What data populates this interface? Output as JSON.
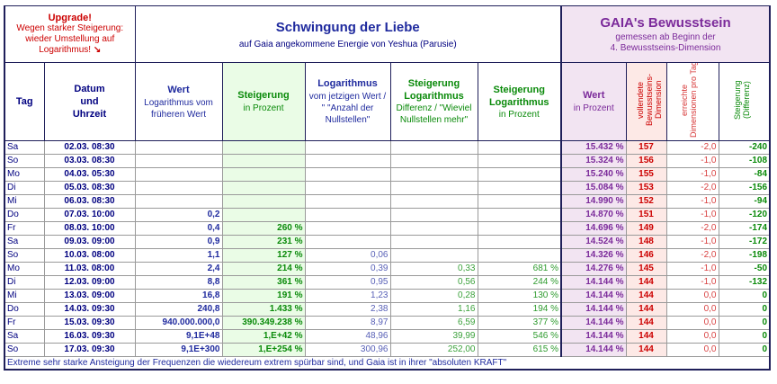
{
  "top": {
    "upgrade_title": "Upgrade!",
    "upgrade_line1": "Wegen starker Steigerung:",
    "upgrade_line2": "wieder Umstellung auf",
    "upgrade_line3": "Logarithmus!",
    "upgrade_arrow": "↘",
    "title": "Schwingung der Liebe",
    "subtitle": "auf Gaia angekommene Energie von Yeshua (Parusie)",
    "gaia_title": "GAIA's Bewusstsein",
    "gaia_sub1": "gemessen ab Beginn der",
    "gaia_sub2": "4. Bewusstseins-Dimension"
  },
  "headers": {
    "tag": "Tag",
    "datum_1": "Datum",
    "datum_2": "und",
    "datum_3": "Uhrzeit",
    "wert_title": "Wert",
    "wert_sub": "Logarithmus vom früheren Wert",
    "steig_title": "Steigerung",
    "steig_sub": "in Prozent",
    "log_title": "Logarithmus",
    "log_sub": "vom jetzigen Wert / \" \"Anzahl der Nullstellen\"",
    "steiglog_title_1": "Steigerung",
    "steiglog_title_2": "Logarithmus",
    "steiglog_sub": "Differenz / \"Wieviel Nullstellen mehr\"",
    "steiglogp_title_1": "Steigerung",
    "steiglogp_title_2": "Logarithmus",
    "steiglogp_sub": "in Prozent",
    "gwert_title": "Wert",
    "gwert_sub": "in Prozent",
    "vollendete": "vollendete Bewusstseins-Dimension",
    "erreichte": "erreichte Dimensionen pro Tag",
    "gsteig": "Steigerung (Differenz)"
  },
  "rows": [
    {
      "tag": "Sa",
      "datum": "02.03.  08:30",
      "wert": "",
      "steig": "",
      "log": "",
      "steiglog": "",
      "steiglogp": "",
      "gwert": "15.432  %",
      "voll": "157",
      "err": "-2,0",
      "diff": "-240"
    },
    {
      "tag": "So",
      "datum": "03.03.  08:30",
      "wert": "",
      "steig": "",
      "log": "",
      "steiglog": "",
      "steiglogp": "",
      "gwert": "15.324  %",
      "voll": "156",
      "err": "-1,0",
      "diff": "-108"
    },
    {
      "tag": "Mo",
      "datum": "04.03.  05:30",
      "wert": "",
      "steig": "",
      "log": "",
      "steiglog": "",
      "steiglogp": "",
      "gwert": "15.240  %",
      "voll": "155",
      "err": "-1,0",
      "diff": "-84"
    },
    {
      "tag": "Di",
      "datum": "05.03.  08:30",
      "wert": "",
      "steig": "",
      "log": "",
      "steiglog": "",
      "steiglogp": "",
      "gwert": "15.084  %",
      "voll": "153",
      "err": "-2,0",
      "diff": "-156"
    },
    {
      "tag": "Mi",
      "datum": "06.03.  08:30",
      "wert": "",
      "steig": "",
      "log": "",
      "steiglog": "",
      "steiglogp": "",
      "gwert": "14.990  %",
      "voll": "152",
      "err": "-1,0",
      "diff": "-94"
    },
    {
      "tag": "Do",
      "datum": "07.03.  10:00",
      "wert": "0,2",
      "steig": "",
      "log": "",
      "steiglog": "",
      "steiglogp": "",
      "gwert": "14.870  %",
      "voll": "151",
      "err": "-1,0",
      "diff": "-120"
    },
    {
      "tag": "Fr",
      "datum": "08.03.  10:00",
      "wert": "0,4",
      "steig": "260  %",
      "log": "",
      "steiglog": "",
      "steiglogp": "",
      "gwert": "14.696  %",
      "voll": "149",
      "err": "-2,0",
      "diff": "-174"
    },
    {
      "tag": "Sa",
      "datum": "09.03.  09:00",
      "wert": "0,9",
      "steig": "231  %",
      "log": "",
      "steiglog": "",
      "steiglogp": "",
      "gwert": "14.524  %",
      "voll": "148",
      "err": "-1,0",
      "diff": "-172"
    },
    {
      "tag": "So",
      "datum": "10.03.  08:00",
      "wert": "1,1",
      "steig": "127  %",
      "log": "0,06",
      "steiglog": "",
      "steiglogp": "",
      "gwert": "14.326  %",
      "voll": "146",
      "err": "-2,0",
      "diff": "-198"
    },
    {
      "tag": "Mo",
      "datum": "11.03.  08:00",
      "wert": "2,4",
      "steig": "214  %",
      "log": "0,39",
      "steiglog": "0,33",
      "steiglogp": "681  %",
      "gwert": "14.276  %",
      "voll": "145",
      "err": "-1,0",
      "diff": "-50"
    },
    {
      "tag": "Di",
      "datum": "12.03.  09:00",
      "wert": "8,8",
      "steig": "361  %",
      "log": "0,95",
      "steiglog": "0,56",
      "steiglogp": "244  %",
      "gwert": "14.144  %",
      "voll": "144",
      "err": "-1,0",
      "diff": "-132"
    },
    {
      "tag": "Mi",
      "datum": "13.03.  09:00",
      "wert": "16,8",
      "steig": "191  %",
      "log": "1,23",
      "steiglog": "0,28",
      "steiglogp": "130  %",
      "gwert": "14.144  %",
      "voll": "144",
      "err": "0,0",
      "diff": "0"
    },
    {
      "tag": "Do",
      "datum": "14.03.  09:30",
      "wert": "240,8",
      "steig": "1.433  %",
      "log": "2,38",
      "steiglog": "1,16",
      "steiglogp": "194  %",
      "gwert": "14.144  %",
      "voll": "144",
      "err": "0,0",
      "diff": "0"
    },
    {
      "tag": "Fr",
      "datum": "15.03.  09:30",
      "wert": "940.000.000,0",
      "steig": "390.349.238  %",
      "log": "8,97",
      "steiglog": "6,59",
      "steiglogp": "377  %",
      "gwert": "14.144  %",
      "voll": "144",
      "err": "0,0",
      "diff": "0"
    },
    {
      "tag": "Sa",
      "datum": "16.03.  09:30",
      "wert": "9,1E+48",
      "steig": "1,E+42  %",
      "log": "48,96",
      "steiglog": "39,99",
      "steiglogp": "546  %",
      "gwert": "14.144  %",
      "voll": "144",
      "err": "0,0",
      "diff": "0"
    },
    {
      "tag": "So",
      "datum": "17.03.  09:30",
      "wert": "9,1E+300",
      "steig": "1,E+254  %",
      "log": "300,96",
      "steiglog": "252,00",
      "steiglogp": "615  %",
      "gwert": "14.144  %",
      "voll": "144",
      "err": "0,0",
      "diff": "0"
    }
  ],
  "footer": "Extreme sehr starke Ansteigung der Frequenzen die wiedereum extrem spürbar sind, und Gaia ist in ihrer \"absoluten KRAFT\""
}
